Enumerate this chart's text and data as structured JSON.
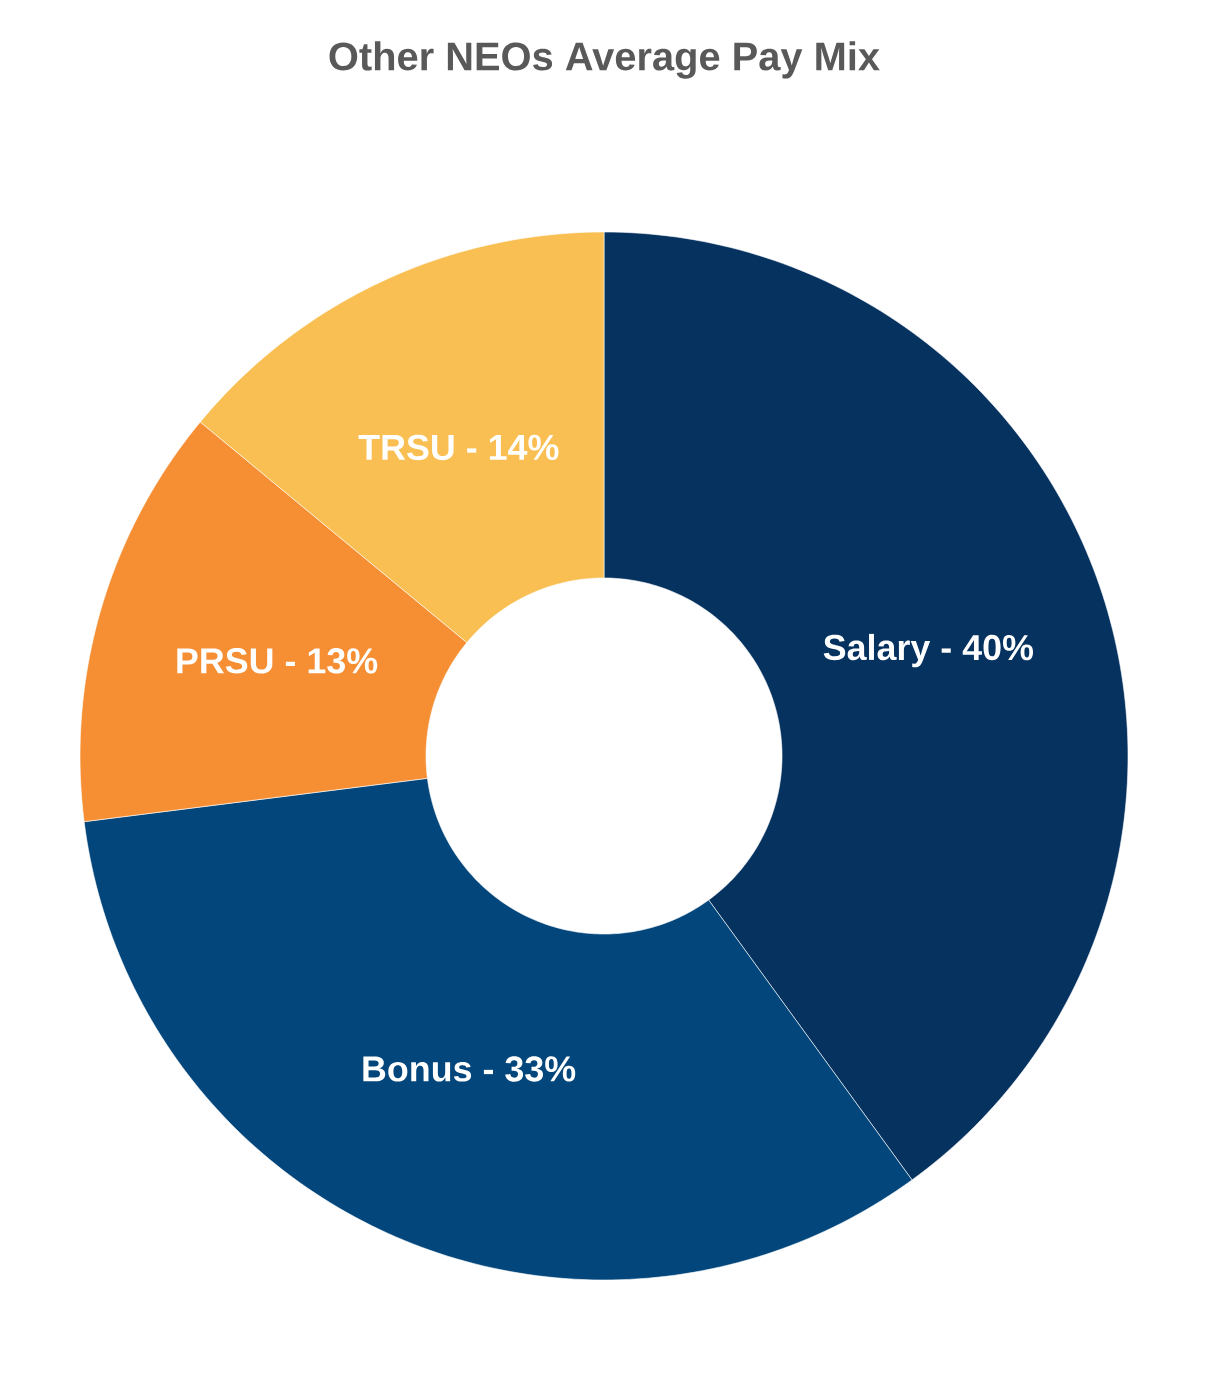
{
  "chart_data": {
    "type": "donut",
    "title": "Other NEOs Average Pay Mix",
    "categories": [
      "Salary - 40%",
      "Bonus - 33%",
      "PRSU - 13%",
      "TRSU - 14%"
    ],
    "values": [
      40,
      33,
      13,
      14
    ],
    "colors": [
      "#063260",
      "#02467c",
      "#f68e33",
      "#f9bf52"
    ]
  }
}
